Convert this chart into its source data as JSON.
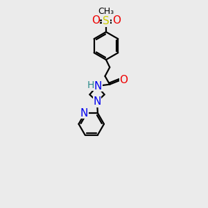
{
  "background_color": "#ebebeb",
  "bond_color": "#000000",
  "atom_colors": {
    "N": "#0000ee",
    "O": "#ee0000",
    "S": "#cccc00",
    "H": "#2a8a8a",
    "C": "#000000"
  },
  "font_size": 10,
  "figsize": [
    3.0,
    3.0
  ],
  "dpi": 100,
  "lw": 1.6
}
